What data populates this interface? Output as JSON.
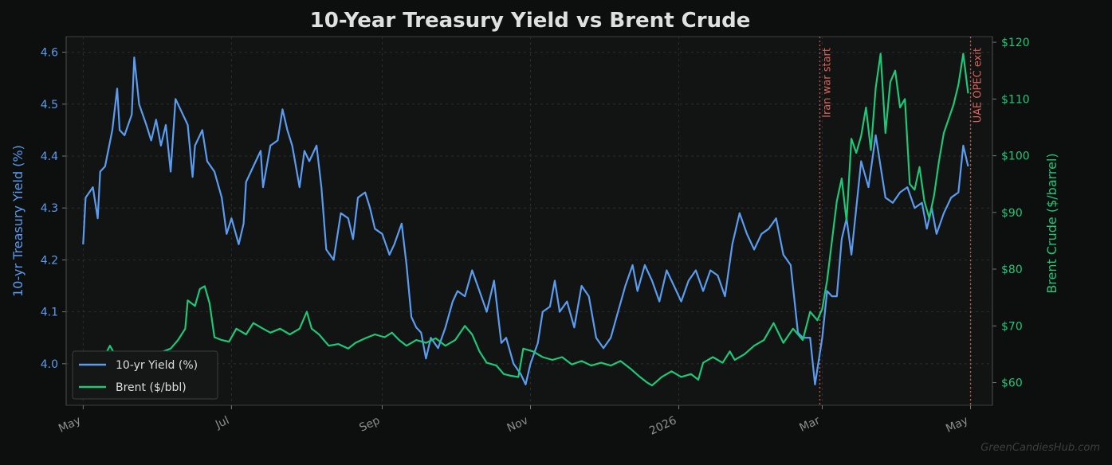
{
  "chart_data": {
    "type": "line",
    "title": "10-Year Treasury Yield vs Brent Crude",
    "x_ticks": [
      "May",
      "Jul",
      "Sep",
      "Nov",
      "2026",
      "Mar",
      "May"
    ],
    "x_range": [
      "2025-04-24",
      "2026-05-10"
    ],
    "y_left": {
      "label": "10-yr Treasury Yield (%)",
      "range": [
        3.92,
        4.63
      ],
      "ticks": [
        "4.0",
        "4.1",
        "4.2",
        "4.3",
        "4.4",
        "4.5",
        "4.6"
      ],
      "color": "#5b9cf0"
    },
    "y_right": {
      "label": "Brent Crude ($/barrel)",
      "range": [
        56,
        121
      ],
      "ticks": [
        "$60",
        "$70",
        "$80",
        "$90",
        "$100",
        "$110",
        "$120"
      ],
      "color": "#1fc777"
    },
    "grid": true,
    "legend_position": "lower-left",
    "events": [
      {
        "label": "Iran war start",
        "date": "2026-02-28",
        "color": "#d9625a"
      },
      {
        "label": "UAE OPEC exit",
        "date": "2026-05-01",
        "color": "#d9625a"
      }
    ],
    "series": [
      {
        "name": "10-yr Yield (%)",
        "axis": "left",
        "color": "#5b9cf0",
        "points": [
          [
            "2025-05-01",
            4.23
          ],
          [
            "2025-05-02",
            4.32
          ],
          [
            "2025-05-05",
            4.34
          ],
          [
            "2025-05-07",
            4.28
          ],
          [
            "2025-05-08",
            4.37
          ],
          [
            "2025-05-10",
            4.38
          ],
          [
            "2025-05-13",
            4.45
          ],
          [
            "2025-05-15",
            4.53
          ],
          [
            "2025-05-16",
            4.45
          ],
          [
            "2025-05-18",
            4.44
          ],
          [
            "2025-05-21",
            4.48
          ],
          [
            "2025-05-22",
            4.59
          ],
          [
            "2025-05-24",
            4.5
          ],
          [
            "2025-05-27",
            4.46
          ],
          [
            "2025-05-29",
            4.43
          ],
          [
            "2025-05-31",
            4.47
          ],
          [
            "2025-06-02",
            4.42
          ],
          [
            "2025-06-04",
            4.46
          ],
          [
            "2025-06-06",
            4.37
          ],
          [
            "2025-06-08",
            4.51
          ],
          [
            "2025-06-11",
            4.48
          ],
          [
            "2025-06-13",
            4.46
          ],
          [
            "2025-06-15",
            4.36
          ],
          [
            "2025-06-16",
            4.42
          ],
          [
            "2025-06-19",
            4.45
          ],
          [
            "2025-06-21",
            4.39
          ],
          [
            "2025-06-24",
            4.37
          ],
          [
            "2025-06-27",
            4.32
          ],
          [
            "2025-06-29",
            4.25
          ],
          [
            "2025-07-01",
            4.28
          ],
          [
            "2025-07-04",
            4.23
          ],
          [
            "2025-07-06",
            4.27
          ],
          [
            "2025-07-07",
            4.35
          ],
          [
            "2025-07-10",
            4.38
          ],
          [
            "2025-07-13",
            4.41
          ],
          [
            "2025-07-14",
            4.34
          ],
          [
            "2025-07-17",
            4.42
          ],
          [
            "2025-07-20",
            4.43
          ],
          [
            "2025-07-22",
            4.49
          ],
          [
            "2025-07-24",
            4.45
          ],
          [
            "2025-07-26",
            4.42
          ],
          [
            "2025-07-29",
            4.34
          ],
          [
            "2025-07-31",
            4.41
          ],
          [
            "2025-08-02",
            4.39
          ],
          [
            "2025-08-05",
            4.42
          ],
          [
            "2025-08-07",
            4.34
          ],
          [
            "2025-08-09",
            4.22
          ],
          [
            "2025-08-12",
            4.2
          ],
          [
            "2025-08-15",
            4.29
          ],
          [
            "2025-08-18",
            4.28
          ],
          [
            "2025-08-20",
            4.24
          ],
          [
            "2025-08-22",
            4.32
          ],
          [
            "2025-08-25",
            4.33
          ],
          [
            "2025-08-27",
            4.3
          ],
          [
            "2025-08-29",
            4.26
          ],
          [
            "2025-09-01",
            4.25
          ],
          [
            "2025-09-04",
            4.21
          ],
          [
            "2025-09-06",
            4.23
          ],
          [
            "2025-09-09",
            4.27
          ],
          [
            "2025-09-11",
            4.19
          ],
          [
            "2025-09-13",
            4.09
          ],
          [
            "2025-09-15",
            4.07
          ],
          [
            "2025-09-17",
            4.06
          ],
          [
            "2025-09-19",
            4.01
          ],
          [
            "2025-09-21",
            4.05
          ],
          [
            "2025-09-24",
            4.03
          ],
          [
            "2025-09-27",
            4.07
          ],
          [
            "2025-09-30",
            4.12
          ],
          [
            "2025-10-02",
            4.14
          ],
          [
            "2025-10-05",
            4.13
          ],
          [
            "2025-10-08",
            4.18
          ],
          [
            "2025-10-11",
            4.14
          ],
          [
            "2025-10-14",
            4.1
          ],
          [
            "2025-10-17",
            4.16
          ],
          [
            "2025-10-20",
            4.04
          ],
          [
            "2025-10-22",
            4.05
          ],
          [
            "2025-10-25",
            4.0
          ],
          [
            "2025-10-28",
            3.98
          ],
          [
            "2025-10-30",
            3.96
          ],
          [
            "2025-11-01",
            4.0
          ],
          [
            "2025-11-04",
            4.04
          ],
          [
            "2025-11-06",
            4.1
          ],
          [
            "2025-11-09",
            4.11
          ],
          [
            "2025-11-11",
            4.16
          ],
          [
            "2025-11-13",
            4.1
          ],
          [
            "2025-11-16",
            4.12
          ],
          [
            "2025-11-19",
            4.07
          ],
          [
            "2025-11-22",
            4.15
          ],
          [
            "2025-11-25",
            4.13
          ],
          [
            "2025-11-28",
            4.05
          ],
          [
            "2025-12-01",
            4.03
          ],
          [
            "2025-12-04",
            4.05
          ],
          [
            "2025-12-07",
            4.1
          ],
          [
            "2025-12-10",
            4.15
          ],
          [
            "2025-12-13",
            4.19
          ],
          [
            "2025-12-15",
            4.14
          ],
          [
            "2025-12-18",
            4.19
          ],
          [
            "2025-12-21",
            4.16
          ],
          [
            "2025-12-24",
            4.12
          ],
          [
            "2025-12-27",
            4.18
          ],
          [
            "2025-12-30",
            4.15
          ],
          [
            "2026-01-02",
            4.12
          ],
          [
            "2026-01-05",
            4.16
          ],
          [
            "2026-01-08",
            4.18
          ],
          [
            "2026-01-11",
            4.14
          ],
          [
            "2026-01-14",
            4.18
          ],
          [
            "2026-01-17",
            4.17
          ],
          [
            "2026-01-20",
            4.13
          ],
          [
            "2026-01-23",
            4.23
          ],
          [
            "2026-01-26",
            4.29
          ],
          [
            "2026-01-29",
            4.25
          ],
          [
            "2026-02-01",
            4.22
          ],
          [
            "2026-02-04",
            4.25
          ],
          [
            "2026-02-07",
            4.26
          ],
          [
            "2026-02-10",
            4.28
          ],
          [
            "2026-02-13",
            4.21
          ],
          [
            "2026-02-16",
            4.19
          ],
          [
            "2026-02-19",
            4.06
          ],
          [
            "2026-02-21",
            4.05
          ],
          [
            "2026-02-24",
            4.05
          ],
          [
            "2026-02-26",
            3.96
          ],
          [
            "2026-03-01",
            4.05
          ],
          [
            "2026-03-03",
            4.14
          ],
          [
            "2026-03-05",
            4.13
          ],
          [
            "2026-03-07",
            4.13
          ],
          [
            "2026-03-09",
            4.24
          ],
          [
            "2026-03-11",
            4.28
          ],
          [
            "2026-03-13",
            4.21
          ],
          [
            "2026-03-15",
            4.3
          ],
          [
            "2026-03-17",
            4.39
          ],
          [
            "2026-03-20",
            4.34
          ],
          [
            "2026-03-23",
            4.44
          ],
          [
            "2026-03-25",
            4.38
          ],
          [
            "2026-03-27",
            4.32
          ],
          [
            "2026-03-30",
            4.31
          ],
          [
            "2026-04-02",
            4.33
          ],
          [
            "2026-04-05",
            4.34
          ],
          [
            "2026-04-08",
            4.3
          ],
          [
            "2026-04-11",
            4.31
          ],
          [
            "2026-04-13",
            4.26
          ],
          [
            "2026-04-15",
            4.3
          ],
          [
            "2026-04-17",
            4.25
          ],
          [
            "2026-04-20",
            4.29
          ],
          [
            "2026-04-23",
            4.32
          ],
          [
            "2026-04-26",
            4.33
          ],
          [
            "2026-04-28",
            4.42
          ],
          [
            "2026-04-30",
            4.38
          ]
        ]
      },
      {
        "name": "Brent ($/bbl)",
        "axis": "right",
        "color": "#1fc777",
        "points": [
          [
            "2025-05-01",
            61.5
          ],
          [
            "2025-05-04",
            60.8
          ],
          [
            "2025-05-06",
            63.0
          ],
          [
            "2025-05-09",
            64.0
          ],
          [
            "2025-05-12",
            66.5
          ],
          [
            "2025-05-14",
            65.0
          ],
          [
            "2025-05-17",
            65.2
          ],
          [
            "2025-05-21",
            64.5
          ],
          [
            "2025-05-25",
            64.0
          ],
          [
            "2025-05-28",
            64.8
          ],
          [
            "2025-05-31",
            63.8
          ],
          [
            "2025-06-03",
            65.5
          ],
          [
            "2025-06-06",
            66.0
          ],
          [
            "2025-06-09",
            67.5
          ],
          [
            "2025-06-12",
            69.5
          ],
          [
            "2025-06-13",
            74.5
          ],
          [
            "2025-06-16",
            73.5
          ],
          [
            "2025-06-18",
            76.5
          ],
          [
            "2025-06-20",
            77.0
          ],
          [
            "2025-06-22",
            74.0
          ],
          [
            "2025-06-24",
            68.0
          ],
          [
            "2025-06-27",
            67.5
          ],
          [
            "2025-06-30",
            67.2
          ],
          [
            "2025-07-03",
            69.5
          ],
          [
            "2025-07-07",
            68.5
          ],
          [
            "2025-07-10",
            70.5
          ],
          [
            "2025-07-14",
            69.5
          ],
          [
            "2025-07-17",
            68.8
          ],
          [
            "2025-07-21",
            69.5
          ],
          [
            "2025-07-25",
            68.5
          ],
          [
            "2025-07-29",
            69.5
          ],
          [
            "2025-08-01",
            72.5
          ],
          [
            "2025-08-03",
            69.5
          ],
          [
            "2025-08-06",
            68.5
          ],
          [
            "2025-08-10",
            66.5
          ],
          [
            "2025-08-14",
            66.8
          ],
          [
            "2025-08-18",
            66.0
          ],
          [
            "2025-08-21",
            67.0
          ],
          [
            "2025-08-25",
            67.8
          ],
          [
            "2025-08-29",
            68.5
          ],
          [
            "2025-09-02",
            68.0
          ],
          [
            "2025-09-05",
            68.8
          ],
          [
            "2025-09-08",
            67.5
          ],
          [
            "2025-09-11",
            66.5
          ],
          [
            "2025-09-15",
            67.5
          ],
          [
            "2025-09-19",
            67.0
          ],
          [
            "2025-09-23",
            67.8
          ],
          [
            "2025-09-27",
            66.5
          ],
          [
            "2025-10-01",
            67.5
          ],
          [
            "2025-10-05",
            70.0
          ],
          [
            "2025-10-08",
            68.5
          ],
          [
            "2025-10-11",
            65.5
          ],
          [
            "2025-10-14",
            63.5
          ],
          [
            "2025-10-18",
            63.0
          ],
          [
            "2025-10-21",
            61.5
          ],
          [
            "2025-10-24",
            61.2
          ],
          [
            "2025-10-27",
            61.0
          ],
          [
            "2025-10-29",
            66.0
          ],
          [
            "2025-11-02",
            65.5
          ],
          [
            "2025-11-06",
            64.5
          ],
          [
            "2025-11-10",
            64.0
          ],
          [
            "2025-11-14",
            64.5
          ],
          [
            "2025-11-18",
            63.2
          ],
          [
            "2025-11-22",
            63.8
          ],
          [
            "2025-11-26",
            63.0
          ],
          [
            "2025-11-30",
            63.5
          ],
          [
            "2025-12-04",
            63.0
          ],
          [
            "2025-12-08",
            63.8
          ],
          [
            "2025-12-12",
            62.5
          ],
          [
            "2025-12-16",
            61.0
          ],
          [
            "2025-12-19",
            60.0
          ],
          [
            "2025-12-21",
            59.5
          ],
          [
            "2025-12-25",
            61.0
          ],
          [
            "2025-12-29",
            62.0
          ],
          [
            "2026-01-02",
            61.0
          ],
          [
            "2026-01-06",
            61.5
          ],
          [
            "2026-01-09",
            60.5
          ],
          [
            "2026-01-11",
            63.5
          ],
          [
            "2026-01-15",
            64.5
          ],
          [
            "2026-01-19",
            63.5
          ],
          [
            "2026-01-22",
            65.5
          ],
          [
            "2026-01-24",
            64.0
          ],
          [
            "2026-01-28",
            65.0
          ],
          [
            "2026-02-01",
            66.5
          ],
          [
            "2026-02-05",
            67.5
          ],
          [
            "2026-02-09",
            70.5
          ],
          [
            "2026-02-13",
            67.0
          ],
          [
            "2026-02-17",
            69.5
          ],
          [
            "2026-02-21",
            67.5
          ],
          [
            "2026-02-24",
            72.5
          ],
          [
            "2026-02-27",
            71.0
          ],
          [
            "2026-03-01",
            73.0
          ],
          [
            "2026-03-03",
            78.0
          ],
          [
            "2026-03-05",
            85.0
          ],
          [
            "2026-03-07",
            92.0
          ],
          [
            "2026-03-09",
            96.0
          ],
          [
            "2026-03-11",
            88.5
          ],
          [
            "2026-03-13",
            103.0
          ],
          [
            "2026-03-15",
            100.5
          ],
          [
            "2026-03-17",
            103.5
          ],
          [
            "2026-03-19",
            108.5
          ],
          [
            "2026-03-21",
            101.0
          ],
          [
            "2026-03-23",
            112.0
          ],
          [
            "2026-03-25",
            118.0
          ],
          [
            "2026-03-27",
            104.0
          ],
          [
            "2026-03-29",
            113.0
          ],
          [
            "2026-03-31",
            115.0
          ],
          [
            "2026-04-02",
            108.5
          ],
          [
            "2026-04-04",
            110.0
          ],
          [
            "2026-04-06",
            95.0
          ],
          [
            "2026-04-08",
            94.0
          ],
          [
            "2026-04-10",
            98.0
          ],
          [
            "2026-04-12",
            92.0
          ],
          [
            "2026-04-14",
            89.0
          ],
          [
            "2026-04-16",
            93.0
          ],
          [
            "2026-04-18",
            99.0
          ],
          [
            "2026-04-20",
            104.0
          ],
          [
            "2026-04-22",
            106.5
          ],
          [
            "2026-04-24",
            109.0
          ],
          [
            "2026-04-26",
            112.5
          ],
          [
            "2026-04-28",
            118.0
          ],
          [
            "2026-04-30",
            111.0
          ]
        ]
      }
    ]
  },
  "watermark": "GreenCandiesHub.com"
}
